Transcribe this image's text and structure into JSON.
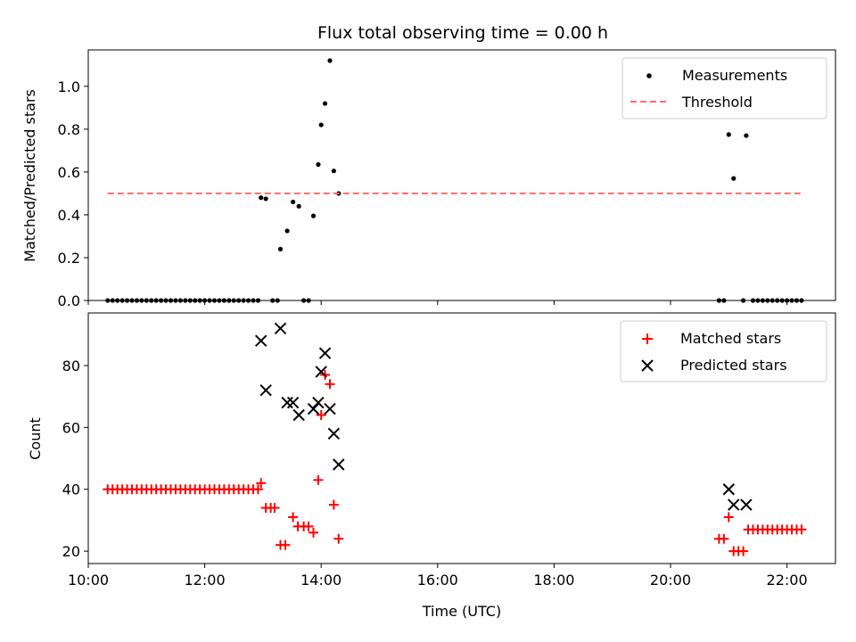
{
  "chart_data": [
    {
      "type": "scatter",
      "title": "Flux total observing time = 0.00 h",
      "xlabel": "",
      "ylabel": "Matched/Predicted stars",
      "xlim": [
        "10:00",
        "22:50"
      ],
      "ylim": [
        0,
        1.17
      ],
      "y_ticks": [
        0.0,
        0.2,
        0.4,
        0.6,
        0.8,
        1.0
      ],
      "y_tick_labels": [
        "0.0",
        "0.2",
        "0.4",
        "0.6",
        "0.8",
        "1.0"
      ],
      "x_tick_labels_hidden": true,
      "grid": false,
      "legend_position": "top-right",
      "series": [
        {
          "name": "Measurements",
          "kind": "scatter",
          "marker": "dot",
          "color": "#000000",
          "points": [
            [
              "10:20",
              0
            ],
            [
              "10:25",
              0
            ],
            [
              "10:30",
              0
            ],
            [
              "10:35",
              0
            ],
            [
              "10:40",
              0
            ],
            [
              "10:45",
              0
            ],
            [
              "10:50",
              0
            ],
            [
              "10:55",
              0
            ],
            [
              "11:00",
              0
            ],
            [
              "11:05",
              0
            ],
            [
              "11:10",
              0
            ],
            [
              "11:15",
              0
            ],
            [
              "11:20",
              0
            ],
            [
              "11:25",
              0
            ],
            [
              "11:30",
              0
            ],
            [
              "11:35",
              0
            ],
            [
              "11:40",
              0
            ],
            [
              "11:45",
              0
            ],
            [
              "11:50",
              0
            ],
            [
              "11:55",
              0
            ],
            [
              "12:00",
              0
            ],
            [
              "12:05",
              0
            ],
            [
              "12:10",
              0
            ],
            [
              "12:15",
              0
            ],
            [
              "12:20",
              0
            ],
            [
              "12:25",
              0
            ],
            [
              "12:30",
              0
            ],
            [
              "12:35",
              0
            ],
            [
              "12:40",
              0
            ],
            [
              "12:45",
              0
            ],
            [
              "12:50",
              0
            ],
            [
              "12:55",
              0
            ],
            [
              "12:58",
              0.48
            ],
            [
              "13:03",
              0.475
            ],
            [
              "13:10",
              0
            ],
            [
              "13:15",
              0
            ],
            [
              "13:18",
              0.24
            ],
            [
              "13:25",
              0.325
            ],
            [
              "13:31",
              0.46
            ],
            [
              "13:37",
              0.44
            ],
            [
              "13:42",
              0
            ],
            [
              "13:47",
              0
            ],
            [
              "13:52",
              0.395
            ],
            [
              "13:57",
              0.635
            ],
            [
              "14:00",
              0.82
            ],
            [
              "14:04",
              0.92
            ],
            [
              "14:09",
              1.12
            ],
            [
              "14:13",
              0.605
            ],
            [
              "14:18",
              0.5
            ],
            [
              "20:50",
              0
            ],
            [
              "20:55",
              0
            ],
            [
              "21:00",
              0.775
            ],
            [
              "21:05",
              0.57
            ],
            [
              "21:15",
              0
            ],
            [
              "21:18",
              0.77
            ],
            [
              "21:25",
              0
            ],
            [
              "21:30",
              0
            ],
            [
              "21:35",
              0
            ],
            [
              "21:40",
              0
            ],
            [
              "21:45",
              0
            ],
            [
              "21:50",
              0
            ],
            [
              "21:55",
              0
            ],
            [
              "22:00",
              0
            ],
            [
              "22:05",
              0
            ],
            [
              "22:10",
              0
            ],
            [
              "22:15",
              0
            ]
          ]
        },
        {
          "name": "Threshold",
          "kind": "line",
          "style": "dashed",
          "color": "#ff6b6b",
          "points": [
            [
              "10:20",
              0.5
            ],
            [
              "22:15",
              0.5
            ]
          ]
        }
      ]
    },
    {
      "type": "scatter",
      "title": "",
      "xlabel": "Time (UTC)",
      "ylabel": "Count",
      "xlim": [
        "10:00",
        "22:50"
      ],
      "ylim": [
        16,
        97
      ],
      "y_ticks": [
        20,
        40,
        60,
        80
      ],
      "y_tick_labels": [
        "20",
        "40",
        "60",
        "80"
      ],
      "x_ticks": [
        "10:00",
        "12:00",
        "14:00",
        "16:00",
        "18:00",
        "20:00",
        "22:00"
      ],
      "grid": false,
      "legend_position": "top-right",
      "series": [
        {
          "name": "Matched stars",
          "kind": "scatter",
          "marker": "plus",
          "color": "#ff0000",
          "points": [
            [
              "10:20",
              40
            ],
            [
              "10:25",
              40
            ],
            [
              "10:30",
              40
            ],
            [
              "10:35",
              40
            ],
            [
              "10:40",
              40
            ],
            [
              "10:45",
              40
            ],
            [
              "10:50",
              40
            ],
            [
              "10:55",
              40
            ],
            [
              "11:00",
              40
            ],
            [
              "11:05",
              40
            ],
            [
              "11:10",
              40
            ],
            [
              "11:15",
              40
            ],
            [
              "11:20",
              40
            ],
            [
              "11:25",
              40
            ],
            [
              "11:30",
              40
            ],
            [
              "11:35",
              40
            ],
            [
              "11:40",
              40
            ],
            [
              "11:45",
              40
            ],
            [
              "11:50",
              40
            ],
            [
              "11:55",
              40
            ],
            [
              "12:00",
              40
            ],
            [
              "12:05",
              40
            ],
            [
              "12:10",
              40
            ],
            [
              "12:15",
              40
            ],
            [
              "12:20",
              40
            ],
            [
              "12:25",
              40
            ],
            [
              "12:30",
              40
            ],
            [
              "12:35",
              40
            ],
            [
              "12:40",
              40
            ],
            [
              "12:45",
              40
            ],
            [
              "12:50",
              40
            ],
            [
              "12:55",
              40
            ],
            [
              "12:58",
              42
            ],
            [
              "13:03",
              34
            ],
            [
              "13:08",
              34
            ],
            [
              "13:12",
              34
            ],
            [
              "13:18",
              22
            ],
            [
              "13:23",
              22
            ],
            [
              "13:31",
              31
            ],
            [
              "13:36",
              28
            ],
            [
              "13:42",
              28
            ],
            [
              "13:47",
              28
            ],
            [
              "13:52",
              26
            ],
            [
              "13:57",
              43
            ],
            [
              "14:00",
              64
            ],
            [
              "14:04",
              77
            ],
            [
              "14:09",
              74
            ],
            [
              "14:13",
              35
            ],
            [
              "14:18",
              24
            ],
            [
              "20:50",
              24
            ],
            [
              "20:55",
              24
            ],
            [
              "21:00",
              31
            ],
            [
              "21:05",
              20
            ],
            [
              "21:10",
              20
            ],
            [
              "21:15",
              20
            ],
            [
              "21:20",
              27
            ],
            [
              "21:25",
              27
            ],
            [
              "21:30",
              27
            ],
            [
              "21:35",
              27
            ],
            [
              "21:40",
              27
            ],
            [
              "21:45",
              27
            ],
            [
              "21:50",
              27
            ],
            [
              "21:55",
              27
            ],
            [
              "22:00",
              27
            ],
            [
              "22:05",
              27
            ],
            [
              "22:10",
              27
            ],
            [
              "22:15",
              27
            ]
          ]
        },
        {
          "name": "Predicted stars",
          "kind": "scatter",
          "marker": "x",
          "color": "#000000",
          "points": [
            [
              "12:58",
              88
            ],
            [
              "13:03",
              72
            ],
            [
              "13:18",
              92
            ],
            [
              "13:25",
              68
            ],
            [
              "13:31",
              68
            ],
            [
              "13:37",
              64
            ],
            [
              "13:52",
              66
            ],
            [
              "13:57",
              68
            ],
            [
              "14:00",
              78
            ],
            [
              "14:04",
              84
            ],
            [
              "14:09",
              66
            ],
            [
              "14:13",
              58
            ],
            [
              "14:18",
              48
            ],
            [
              "21:00",
              40
            ],
            [
              "21:05",
              35
            ],
            [
              "21:18",
              35
            ]
          ]
        }
      ]
    }
  ]
}
